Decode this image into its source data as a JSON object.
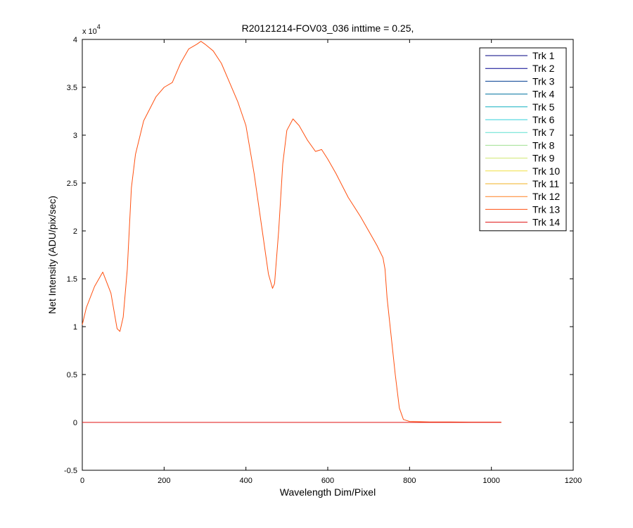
{
  "chart_data": {
    "type": "line",
    "title": "R20121214-FOV03_036 inttime = 0.25,",
    "xlabel": "Wavelength Dim/Pixel",
    "ylabel": "Net Intensity (ADU/pix/sec)",
    "y_multiplier_label": {
      "base": "x 10",
      "exponent": "4"
    },
    "xlim": [
      0,
      1200
    ],
    "ylim": [
      -0.5,
      4
    ],
    "y_scale": 10000,
    "xticks": [
      0,
      200,
      400,
      600,
      800,
      1000,
      1200
    ],
    "yticks": [
      -0.5,
      0,
      0.5,
      1,
      1.5,
      2,
      2.5,
      3,
      3.5,
      4
    ],
    "xtick_labels": [
      "0",
      "200",
      "400",
      "600",
      "800",
      "1000",
      "1200"
    ],
    "ytick_labels": [
      "-0.5",
      "0",
      "0.5",
      "1",
      "1.5",
      "2",
      "2.5",
      "3",
      "3.5",
      "4"
    ],
    "grid": false,
    "legend_position": "top-right",
    "series": [
      {
        "name": "Trk 1",
        "color": "#000080",
        "x": [
          0,
          1024
        ],
        "values": [
          0,
          0
        ]
      },
      {
        "name": "Trk 2",
        "color": "#00008f",
        "x": [
          0,
          1024
        ],
        "values": [
          0,
          0
        ]
      },
      {
        "name": "Trk 3",
        "color": "#003c8f",
        "x": [
          0,
          1024
        ],
        "values": [
          0,
          0
        ]
      },
      {
        "name": "Trk 4",
        "color": "#00729f",
        "x": [
          0,
          1024
        ],
        "values": [
          0,
          0
        ]
      },
      {
        "name": "Trk 5",
        "color": "#10b0c0",
        "x": [
          0,
          1024
        ],
        "values": [
          0,
          0
        ]
      },
      {
        "name": "Trk 6",
        "color": "#30d0d8",
        "x": [
          0,
          1024
        ],
        "values": [
          0,
          0
        ]
      },
      {
        "name": "Trk 7",
        "color": "#5fe0d0",
        "x": [
          0,
          1024
        ],
        "values": [
          0,
          0
        ]
      },
      {
        "name": "Trk 8",
        "color": "#9fe090",
        "x": [
          0,
          1024
        ],
        "values": [
          0,
          0
        ]
      },
      {
        "name": "Trk 9",
        "color": "#d0e870",
        "x": [
          0,
          1024
        ],
        "values": [
          0,
          0
        ]
      },
      {
        "name": "Trk 10",
        "color": "#f0e040",
        "x": [
          0,
          1024
        ],
        "values": [
          0,
          0
        ]
      },
      {
        "name": "Trk 11",
        "color": "#f0b020",
        "x": [
          0,
          1024
        ],
        "values": [
          0,
          0
        ]
      },
      {
        "name": "Trk 12",
        "color": "#ff8020",
        "x": [
          0,
          1024
        ],
        "values": [
          0,
          0
        ]
      },
      {
        "name": "Trk 13",
        "color": "#ff5010",
        "x": [
          0,
          10,
          30,
          50,
          70,
          85,
          92,
          100,
          110,
          120,
          130,
          150,
          180,
          200,
          220,
          240,
          260,
          280,
          290,
          300,
          320,
          340,
          360,
          380,
          400,
          420,
          440,
          455,
          465,
          470,
          480,
          490,
          500,
          515,
          530,
          550,
          570,
          585,
          600,
          620,
          650,
          680,
          700,
          720,
          735,
          740,
          745,
          755,
          765,
          775,
          785,
          800,
          850,
          900,
          950,
          1000,
          1024
        ],
        "values": [
          1.02,
          1.2,
          1.42,
          1.57,
          1.35,
          0.98,
          0.95,
          1.1,
          1.6,
          2.45,
          2.8,
          3.15,
          3.4,
          3.5,
          3.55,
          3.75,
          3.9,
          3.95,
          3.98,
          3.95,
          3.88,
          3.75,
          3.55,
          3.35,
          3.1,
          2.6,
          2.0,
          1.55,
          1.4,
          1.45,
          2.0,
          2.7,
          3.05,
          3.17,
          3.1,
          2.95,
          2.83,
          2.85,
          2.75,
          2.6,
          2.35,
          2.15,
          2.0,
          1.85,
          1.72,
          1.6,
          1.3,
          0.9,
          0.5,
          0.15,
          0.03,
          0.01,
          0.005,
          0.005,
          0.003,
          0.003,
          0.003
        ]
      },
      {
        "name": "Trk 14",
        "color": "#e01010",
        "x": [
          0,
          1024
        ],
        "values": [
          0,
          0
        ]
      }
    ]
  }
}
